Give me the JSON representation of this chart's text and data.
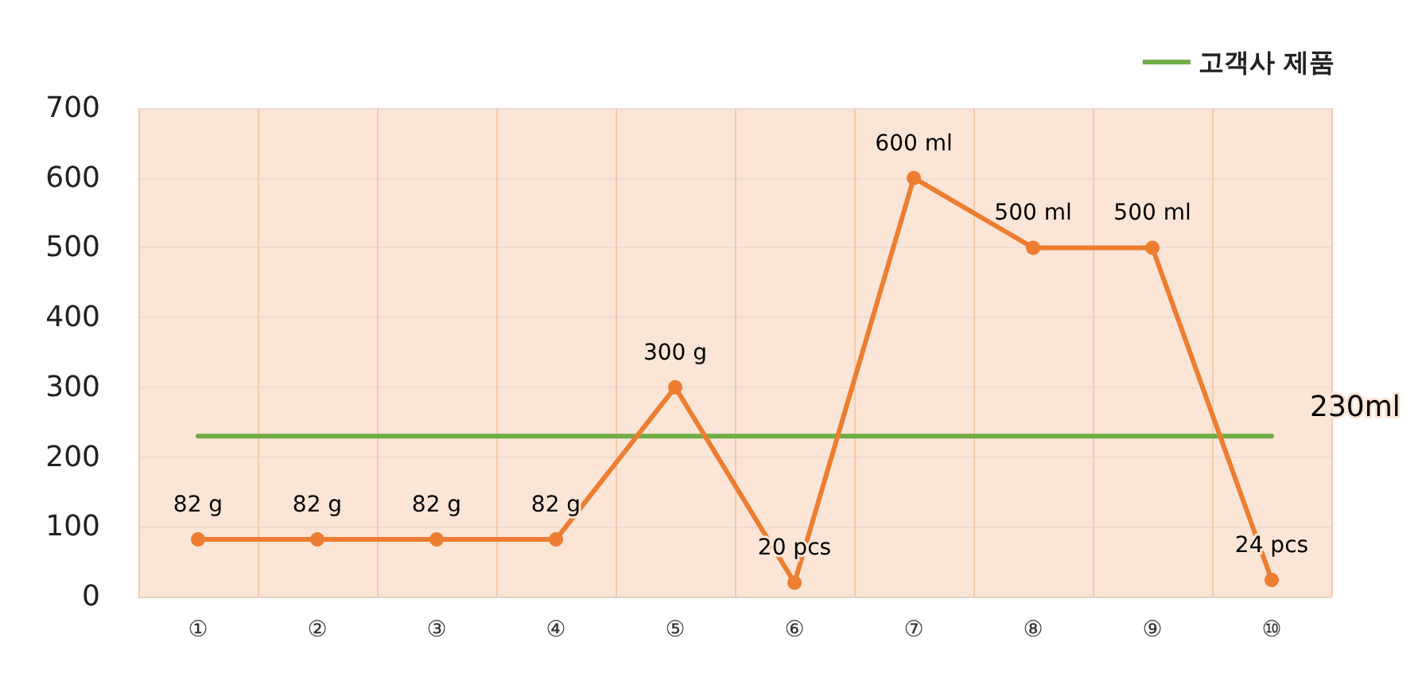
{
  "chart_data": {
    "type": "line",
    "categories": [
      "①",
      "②",
      "③",
      "④",
      "⑤",
      "⑥",
      "⑦",
      "⑧",
      "⑨",
      "⑩"
    ],
    "series": [
      {
        "color": "#ed7d31",
        "values": [
          82,
          82,
          82,
          82,
          300,
          20,
          600,
          500,
          500,
          24
        ],
        "value_labels": [
          "82 g",
          "82 g",
          "82 g",
          "82 g",
          "300 g",
          "20 pcs",
          "600 ml",
          "500 ml",
          "500 ml",
          "24 pcs"
        ],
        "marker": "circle"
      },
      {
        "name": "고객사 제품",
        "color": "#70ad47",
        "values": [
          230,
          230,
          230,
          230,
          230,
          230,
          230,
          230,
          230,
          230
        ],
        "value_labels": [
          null,
          null,
          null,
          null,
          null,
          null,
          null,
          null,
          null,
          "230ml"
        ],
        "marker": "none"
      }
    ],
    "ylim": [
      0,
      700
    ],
    "yticks": [
      0,
      100,
      200,
      300,
      400,
      500,
      600,
      700
    ],
    "grid": true,
    "legend": "top right"
  }
}
